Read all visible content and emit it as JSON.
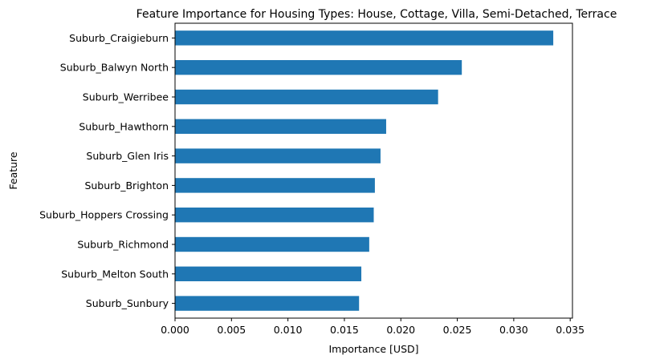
{
  "chart_data": {
    "type": "bar",
    "orientation": "horizontal",
    "title": "Feature Importance for Housing Types: House, Cottage, Villa, Semi-Detached, Terrace",
    "xlabel": "Importance [USD]",
    "ylabel": "Feature",
    "xlim": [
      0,
      0.0352
    ],
    "xticks": [
      "0.000",
      "0.005",
      "0.010",
      "0.015",
      "0.020",
      "0.025",
      "0.030",
      "0.035"
    ],
    "xtick_values": [
      0,
      0.005,
      0.01,
      0.015,
      0.02,
      0.025,
      0.03,
      0.035
    ],
    "categories": [
      "Suburb_Craigieburn",
      "Suburb_Balwyn North",
      "Suburb_Werribee",
      "Suburb_Hawthorn",
      "Suburb_Glen Iris",
      "Suburb_Brighton",
      "Suburb_Hoppers Crossing",
      "Suburb_Richmond",
      "Suburb_Melton South",
      "Suburb_Sunbury"
    ],
    "values": [
      0.0335,
      0.0254,
      0.0233,
      0.0187,
      0.0182,
      0.0177,
      0.0176,
      0.0172,
      0.0165,
      0.0163
    ],
    "bar_color": "#1f77b4",
    "grid": false,
    "legend": "none"
  }
}
